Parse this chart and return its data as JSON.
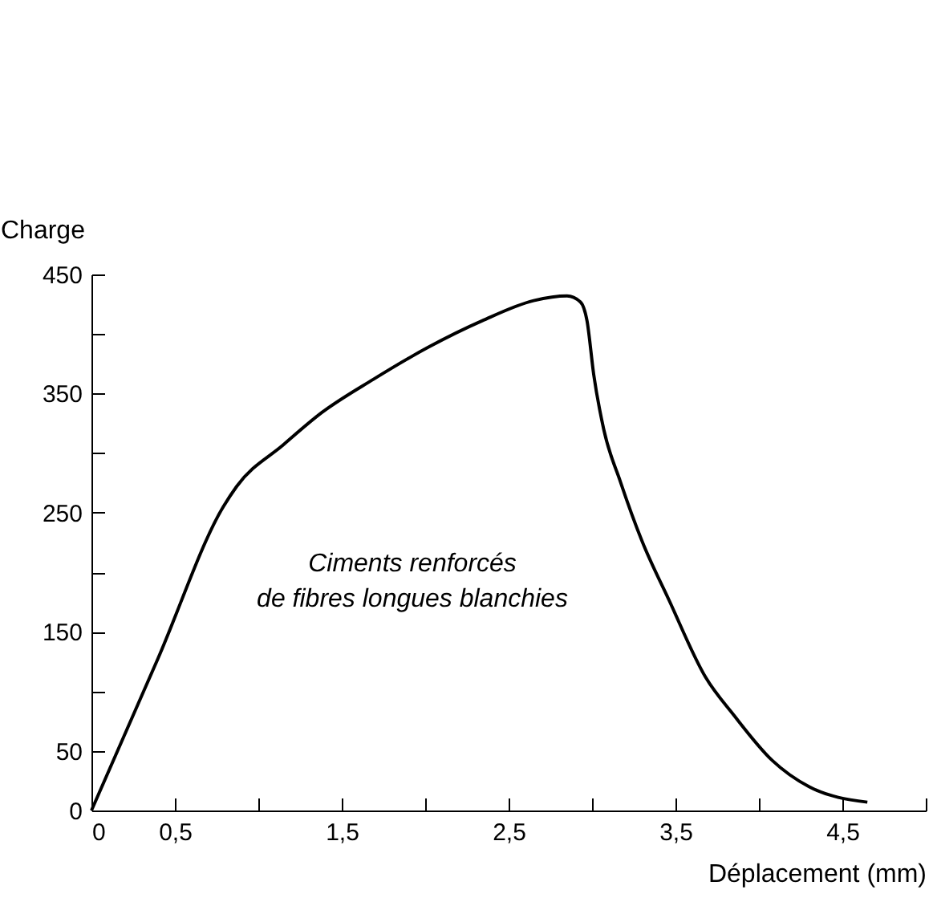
{
  "chart_data": {
    "type": "line",
    "xlabel": "Déplacement (mm)",
    "ylabel": "Charge",
    "x": [
      0,
      0.4,
      0.79,
      0.87,
      1.15,
      1.38,
      1.69,
      2.02,
      2.34,
      2.65,
      2.85,
      2.93,
      2.97,
      3.01,
      3.07,
      3.17,
      3.3,
      3.46,
      3.68,
      3.85,
      4.08,
      4.3,
      4.65
    ],
    "series": [
      {
        "color": "#000000",
        "values": [
          0,
          128,
          255,
          272,
          307,
          334,
          362,
          389,
          411,
          428,
          432,
          427,
          411,
          366,
          320,
          276,
          226,
          177,
          112,
          80,
          42,
          20,
          7
        ]
      }
    ],
    "annotations": [
      "Ciments renforcés\nde fibres longues blanchies"
    ],
    "xlim": [
      0,
      5
    ],
    "ylim": [
      0,
      450
    ],
    "xticks": [
      0,
      {
        "value": 0.5,
        "label": "0,5"
      },
      {
        "value": 1,
        "label": null
      },
      {
        "value": 1.5,
        "label": "1,5"
      },
      {
        "value": 2,
        "label": null
      },
      {
        "value": 2.5,
        "label": "2,5"
      },
      {
        "value": 3,
        "label": null
      },
      {
        "value": 3.5,
        "label": "3,5"
      },
      {
        "value": 4,
        "label": null
      },
      {
        "value": 4.5,
        "label": "4,5"
      },
      {
        "value": 5,
        "label": null
      }
    ],
    "yticks": [
      0,
      50,
      {
        "value": 100,
        "label": null
      },
      150,
      {
        "value": 200,
        "label": null
      },
      250,
      {
        "value": 300,
        "label": null
      },
      350,
      {
        "value": 400,
        "label": null
      },
      450
    ],
    "grid": false,
    "marker": "none",
    "line_style": "solid"
  }
}
